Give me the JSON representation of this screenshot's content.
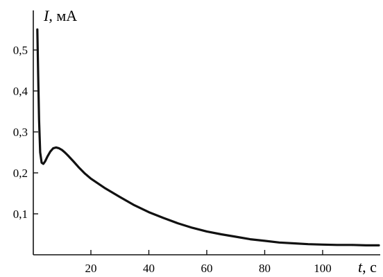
{
  "chart_data": {
    "type": "line",
    "xlabel": {
      "var": "t",
      "unit": ", с"
    },
    "ylabel": {
      "var": "I",
      "unit": ", мА"
    },
    "xlim": [
      0,
      120
    ],
    "ylim": [
      0,
      0.57
    ],
    "x_ticks": [
      20,
      40,
      60,
      80,
      100
    ],
    "x_tick_labels": [
      "20",
      "40",
      "60",
      "80",
      "100"
    ],
    "y_ticks": [
      0.1,
      0.2,
      0.3,
      0.4,
      0.5
    ],
    "y_tick_labels": [
      "0,1",
      "0,2",
      "0,3",
      "0,4",
      "0,5"
    ],
    "grid": false,
    "line_color": "#111111",
    "series": [
      {
        "x": [
          1.5,
          1.8,
          2.1,
          2.5,
          3.0,
          3.6,
          4.2,
          5.0,
          6.0,
          7.0,
          8.0,
          9.0,
          10.0,
          11.0,
          12.0,
          14.0,
          16.0,
          18.0,
          20.0,
          25.0,
          30.0,
          35.0,
          40.0,
          45.0,
          50.0,
          55.0,
          60.0,
          65.0,
          70.0,
          75.0,
          80.0,
          85.0,
          90.0,
          95.0,
          100.0,
          105.0,
          110.0,
          115.0,
          120.0
        ],
        "y": [
          0.55,
          0.44,
          0.33,
          0.25,
          0.225,
          0.222,
          0.228,
          0.24,
          0.252,
          0.26,
          0.262,
          0.26,
          0.256,
          0.25,
          0.243,
          0.228,
          0.212,
          0.198,
          0.186,
          0.162,
          0.141,
          0.121,
          0.104,
          0.09,
          0.077,
          0.066,
          0.057,
          0.05,
          0.044,
          0.038,
          0.034,
          0.03,
          0.028,
          0.026,
          0.025,
          0.024,
          0.024,
          0.023,
          0.023
        ]
      }
    ]
  }
}
